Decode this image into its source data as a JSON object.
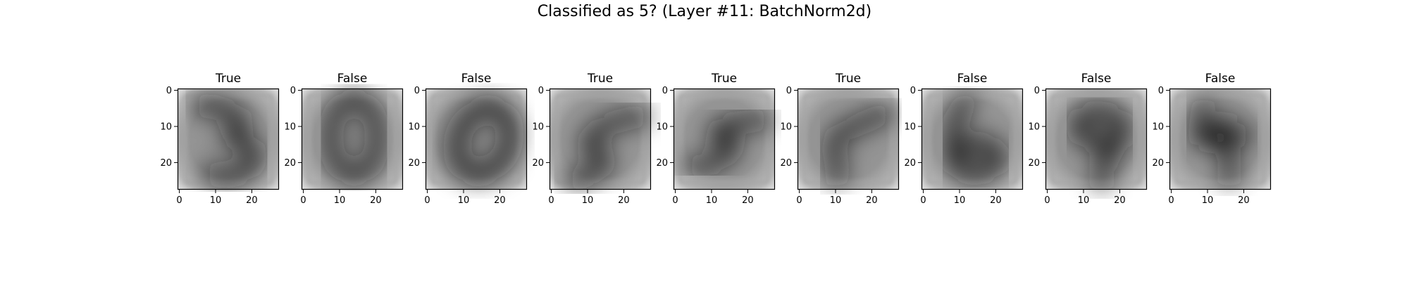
{
  "figure": {
    "title": "Classified as 5? (Layer #11: BatchNorm2d)"
  },
  "chart_data": {
    "type": "heatmap",
    "colormap": "gray_r",
    "grid": false,
    "xlim": [
      -0.5,
      27.5
    ],
    "ylim": [
      27.5,
      -0.5
    ],
    "xticks": [
      0,
      10,
      20
    ],
    "yticks": [
      0,
      10,
      20
    ],
    "panels": [
      {
        "title": "True",
        "digit": "3"
      },
      {
        "title": "False",
        "digit": "0"
      },
      {
        "title": "False",
        "digit": "0"
      },
      {
        "title": "True",
        "digit": "5"
      },
      {
        "title": "True",
        "digit": "5"
      },
      {
        "title": "True",
        "digit": "5"
      },
      {
        "title": "False",
        "digit": "6"
      },
      {
        "title": "False",
        "digit": "9"
      },
      {
        "title": "False",
        "digit": "4"
      }
    ]
  }
}
